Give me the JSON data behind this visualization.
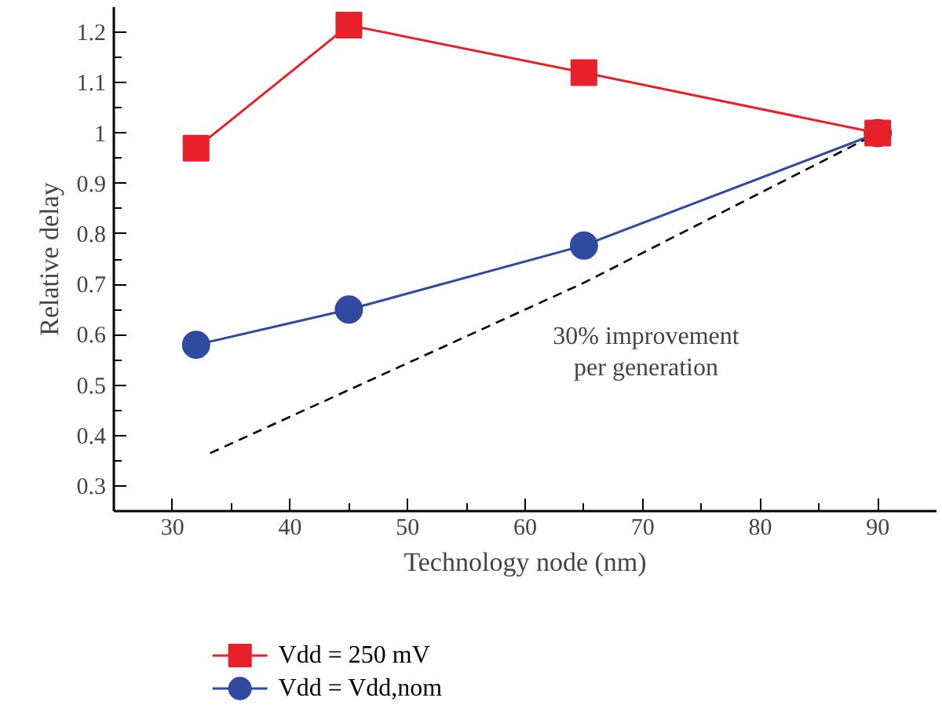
{
  "chart_data": {
    "type": "line",
    "xlabel": "Technology node (nm)",
    "ylabel": "Relative delay",
    "xlim": [
      25,
      95
    ],
    "ylim": [
      0.25,
      1.25
    ],
    "xticks": [
      30,
      40,
      50,
      60,
      70,
      80,
      90
    ],
    "yticks": [
      0.3,
      0.4,
      0.5,
      0.6,
      0.7,
      0.8,
      0.9,
      1,
      1.1,
      1.2
    ],
    "grid": false,
    "legend": "bottom left",
    "line_style": "solid",
    "series": [
      {
        "name": "Vdd = 250 mV",
        "color": "#e8202a",
        "marker": "square",
        "x": [
          32,
          45,
          65,
          90
        ],
        "values": [
          0.97,
          1.214,
          1.12,
          1.0
        ]
      },
      {
        "name": "Vdd = Vdd,nom",
        "color": "#2f4a9e",
        "marker": "circle",
        "x": [
          32,
          45,
          65,
          90
        ],
        "values": [
          0.58,
          0.65,
          0.777,
          1.0
        ]
      },
      {
        "color": "#000000",
        "marker": "none",
        "line_style": "dashed",
        "x": [
          33.2,
          65,
          90
        ],
        "values": [
          0.365,
          0.703,
          1.0
        ]
      }
    ],
    "annotations": [
      "30% improvement\nper generation"
    ]
  }
}
